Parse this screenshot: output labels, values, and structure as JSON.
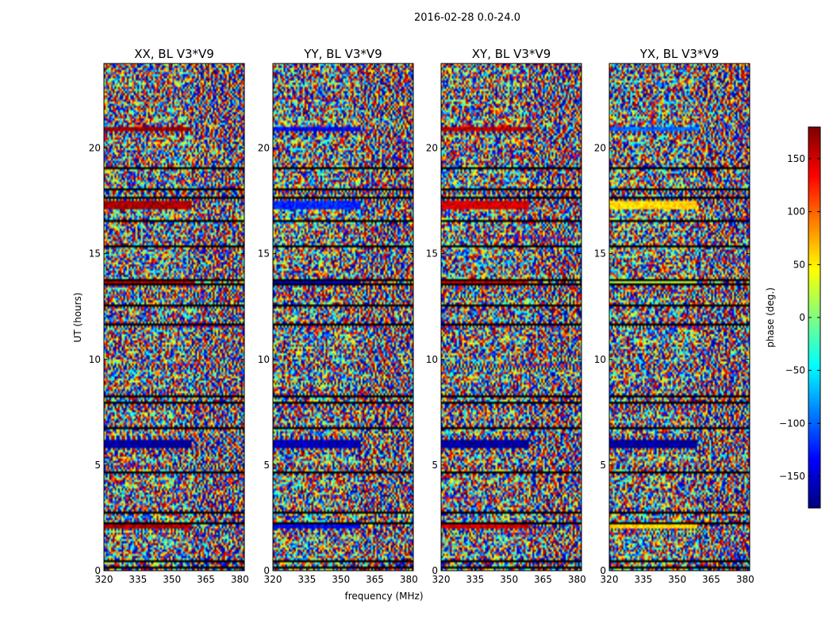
{
  "figure": {
    "suptitle": "2016-02-28 0.0-24.0"
  },
  "chart_data": {
    "type": "heatmap",
    "title": "2016-02-28 0.0-24.0",
    "xlabel": "frequency (MHz)",
    "ylabel": "UT (hours)",
    "xlim": [
      320,
      382
    ],
    "ylim": [
      0,
      24
    ],
    "x_ticks": [
      "320",
      "335",
      "350",
      "365",
      "380"
    ],
    "y_ticks": [
      "0",
      "5",
      "10",
      "15",
      "20"
    ],
    "panels": [
      {
        "name": "XX, BL V3*V9",
        "bias_bands": [
          [
            2.0,
            2.2,
            165
          ],
          [
            5.8,
            6.2,
            -170
          ],
          [
            13.5,
            13.8,
            160
          ],
          [
            17.1,
            17.5,
            165
          ],
          [
            20.8,
            21.0,
            170
          ]
        ]
      },
      {
        "name": "YY, BL V3*V9",
        "bias_bands": [
          [
            2.0,
            2.2,
            -140
          ],
          [
            5.8,
            6.2,
            -160
          ],
          [
            13.5,
            13.8,
            -150
          ],
          [
            17.1,
            17.5,
            -120
          ],
          [
            20.8,
            21.0,
            -140
          ]
        ]
      },
      {
        "name": "XY, BL V3*V9",
        "bias_bands": [
          [
            2.0,
            2.2,
            150
          ],
          [
            5.8,
            6.2,
            -170
          ],
          [
            13.5,
            13.8,
            150
          ],
          [
            17.1,
            17.5,
            150
          ],
          [
            20.8,
            21.0,
            160
          ]
        ]
      },
      {
        "name": "YX, BL V3*V9",
        "bias_bands": [
          [
            2.0,
            2.2,
            60
          ],
          [
            5.8,
            6.2,
            -170
          ],
          [
            13.5,
            13.8,
            20
          ],
          [
            17.1,
            17.5,
            60
          ],
          [
            20.8,
            21.0,
            -100
          ]
        ]
      }
    ],
    "colorbar": {
      "label": "phase (deg.)",
      "range": [
        -180,
        180
      ],
      "ticks": [
        "150",
        "100",
        "50",
        "0",
        "−50",
        "−100",
        "−150"
      ],
      "tick_values": [
        150,
        100,
        50,
        0,
        -50,
        -100,
        -150
      ],
      "colormap": "jet"
    }
  }
}
